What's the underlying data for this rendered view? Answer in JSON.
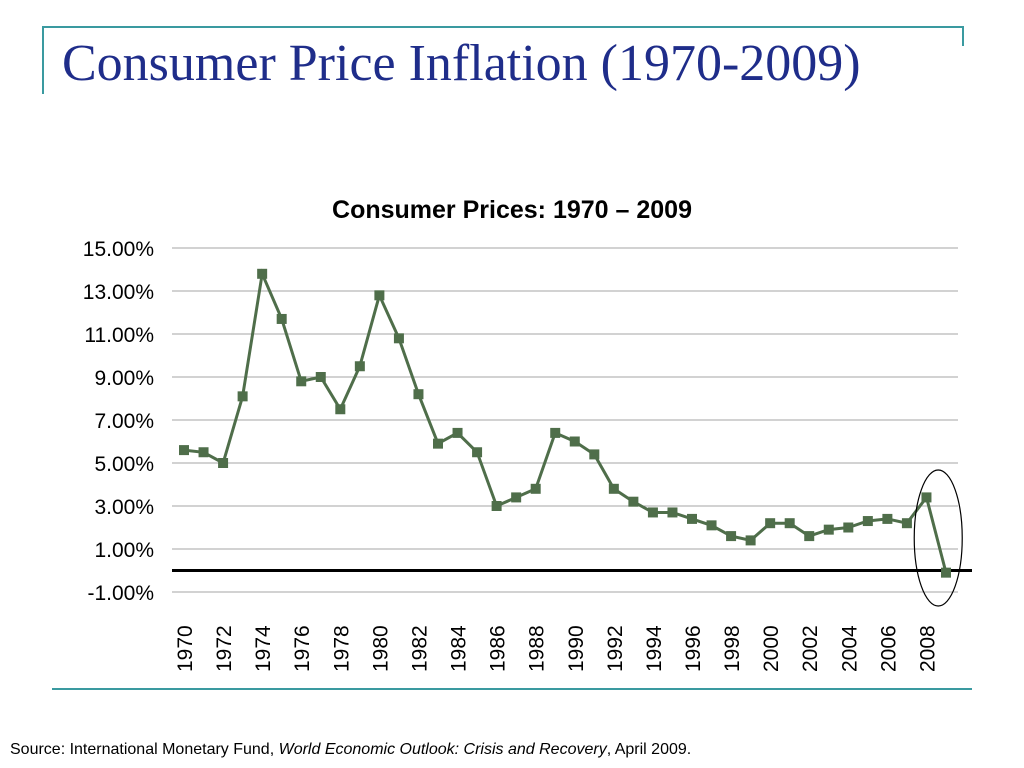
{
  "slide": {
    "title": "Consumer Price Inflation (1970-2009)"
  },
  "source": {
    "prefix": "Source: International Monetary Fund, ",
    "publication": "World Economic Outlook: Crisis and Recovery",
    "suffix": ", April 2009."
  },
  "chart_data": {
    "type": "line",
    "title": "Consumer Prices: 1970 – 2009",
    "xlabel": "",
    "ylabel": "",
    "x": [
      1970,
      1971,
      1972,
      1973,
      1974,
      1975,
      1976,
      1977,
      1978,
      1979,
      1980,
      1981,
      1982,
      1983,
      1984,
      1985,
      1986,
      1987,
      1988,
      1989,
      1990,
      1991,
      1992,
      1993,
      1994,
      1995,
      1996,
      1997,
      1998,
      1999,
      2000,
      2001,
      2002,
      2003,
      2004,
      2005,
      2006,
      2007,
      2008,
      2009
    ],
    "x_tick_labels": [
      "1970",
      "1972",
      "1974",
      "1976",
      "1978",
      "1980",
      "1982",
      "1984",
      "1986",
      "1988",
      "1990",
      "1992",
      "1994",
      "1996",
      "1998",
      "2000",
      "2002",
      "2004",
      "2006",
      "2008"
    ],
    "y_tick_labels": [
      "15.00%",
      "13.00%",
      "11.00%",
      "9.00%",
      "7.00%",
      "5.00%",
      "3.00%",
      "1.00%",
      "-1.00%"
    ],
    "series": [
      {
        "values": [
          5.6,
          5.5,
          5.0,
          8.1,
          13.8,
          11.7,
          8.8,
          9.0,
          7.5,
          9.5,
          12.8,
          10.8,
          8.2,
          5.9,
          6.4,
          5.5,
          3.0,
          3.4,
          3.8,
          6.4,
          6.0,
          5.4,
          3.8,
          3.2,
          2.7,
          2.7,
          2.4,
          2.1,
          1.6,
          1.4,
          2.2,
          2.2,
          1.6,
          1.9,
          2.0,
          2.3,
          2.4,
          2.2,
          3.4,
          -0.1
        ]
      }
    ],
    "ylim": [
      -1,
      15
    ],
    "y_ticks": [
      -1,
      1,
      3,
      5,
      7,
      9,
      11,
      13,
      15
    ],
    "grid": true,
    "legend": "none",
    "reference_line_y": 0,
    "highlight": {
      "shape": "ellipse",
      "x_range": [
        2008,
        2009
      ]
    },
    "colors": {
      "series": "#4f6e4a",
      "grid": "#a6a6a6",
      "axis": "#000000"
    }
  }
}
